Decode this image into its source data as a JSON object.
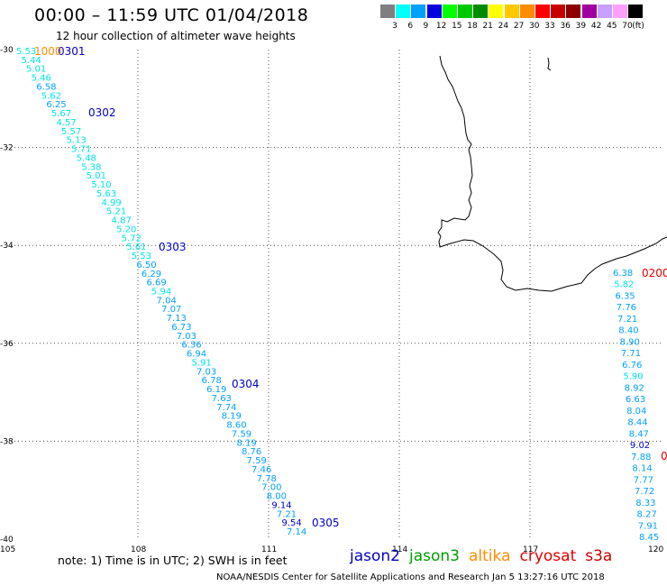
{
  "title": "00:00 – 11:59 UTC 01/04/2018",
  "subtitle": "12 hour collection of altimeter wave heights",
  "note": "note:  1) Time is in UTC;  2) SWH is in feet",
  "credit": "NOAA/NESDIS Center for Satellite Applications and Research    Jan  5 13:27:16 UTC 2018",
  "legend": {
    "unit": "(ft)",
    "bins": [
      {
        "label": "3",
        "color": "#7f7f7f"
      },
      {
        "label": "6",
        "color": "#00ffff"
      },
      {
        "label": "9",
        "color": "#00a0ff"
      },
      {
        "label": "12",
        "color": "#0000e0"
      },
      {
        "label": "15",
        "color": "#00ff00"
      },
      {
        "label": "18",
        "color": "#00c800"
      },
      {
        "label": "21",
        "color": "#008c00"
      },
      {
        "label": "24",
        "color": "#ffff00"
      },
      {
        "label": "27",
        "color": "#ffc800"
      },
      {
        "label": "30",
        "color": "#ff8c00"
      },
      {
        "label": "33",
        "color": "#ff0000"
      },
      {
        "label": "36",
        "color": "#c80000"
      },
      {
        "label": "39",
        "color": "#8c0000"
      },
      {
        "label": "42",
        "color": "#a000a0"
      },
      {
        "label": "45",
        "color": "#c8a0ff"
      },
      {
        "label": "70",
        "color": "#ffa0ff"
      },
      {
        "label": "",
        "color": "#000000"
      }
    ]
  },
  "satellites": [
    {
      "name": "jason2",
      "color": "#0000c8"
    },
    {
      "name": "jason3",
      "color": "#00a000"
    },
    {
      "name": "altika",
      "color": "#ff8c00"
    },
    {
      "name": "cryosat",
      "color": "#e00000"
    },
    {
      "name": "s3a",
      "color": "#c80000"
    }
  ],
  "map": {
    "lon_labels": [
      "105",
      "108",
      "111",
      "114",
      "117",
      "120"
    ],
    "lat_labels": [
      "-30",
      "-32",
      "-34",
      "-36",
      "-38",
      "-40"
    ],
    "lon_range": [
      105,
      120
    ],
    "lat_range": [
      -40,
      -30
    ]
  },
  "track_west": {
    "labels": [
      {
        "text": "0301",
        "color": "#0000c8",
        "row": 0
      },
      {
        "text": "1000",
        "color": "#ff8c00",
        "row": 0
      },
      {
        "text": "0302",
        "color": "#0000c8",
        "row": 12
      },
      {
        "text": "0303",
        "color": "#0000c8",
        "row": 39
      },
      {
        "text": "0304",
        "color": "#0000c8",
        "row": 69
      },
      {
        "text": "0305",
        "color": "#0000c8",
        "row": 98
      }
    ],
    "values": [
      "5.53",
      "5.44",
      "5.01",
      "5.46",
      "6.58",
      "5.62",
      "6.25",
      "5.67",
      "4.57",
      "5.57",
      "5.13",
      "5.71",
      "5.48",
      "5.38",
      "5.01",
      "5.10",
      "5.63",
      "4.99",
      "5.21",
      "4.87",
      "5.20",
      "5.72",
      "5.61",
      "5.53",
      "6.50",
      "6.29",
      "6.69",
      "5.94",
      "7.04",
      "7.07",
      "7.13",
      "6.73",
      "7.03",
      "6.36",
      "6.94",
      "5.91",
      "7.03",
      "6.78",
      "6.19",
      "7.63",
      "7.74",
      "8.19",
      "8.60",
      "7.59",
      "8.19",
      "8.76",
      "7.59",
      "7.46",
      "7.78",
      "7.00",
      "8.00",
      "9.14",
      "7.21",
      "9.54",
      "7.14"
    ]
  },
  "track_east": {
    "labels": [
      {
        "text": "0200",
        "color": "#e00000"
      },
      {
        "text": "0",
        "color": "#e00000"
      }
    ],
    "values": [
      "6.38",
      "5.82",
      "6.35",
      "7.76",
      "7.21",
      "8.40",
      "8.90",
      "7.71",
      "6.76",
      "5.90",
      "8.92",
      "6.63",
      "8.04",
      "8.44",
      "8.47",
      "9.02",
      "7.88",
      "8.14",
      "7.77",
      "7.72",
      "8.33",
      "8.27",
      "7.91",
      "8.45"
    ]
  }
}
